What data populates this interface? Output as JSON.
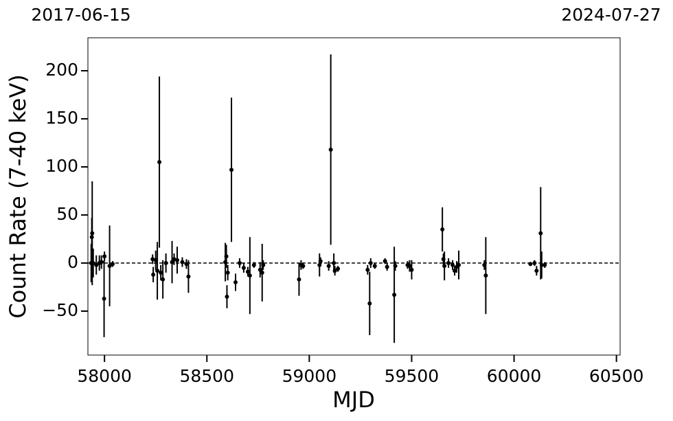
{
  "chart_data": {
    "type": "scatter",
    "annotations": [
      "2017-06-15",
      "2024-07-27"
    ],
    "xlabel": "MJD",
    "ylabel": "Count Rate (7-40 keV)",
    "color": "#000000",
    "hline": 0,
    "xlim": [
      57919,
      60518
    ],
    "ylim": [
      -95.7,
      234.3
    ],
    "xticks": [
      58000,
      58500,
      59000,
      59500,
      60000,
      60500
    ],
    "yticks": [
      {
        "value": -50,
        "label": "−50"
      },
      0,
      50,
      100,
      150,
      200
    ],
    "x": [
      57940,
      57938,
      57935,
      57945,
      57960,
      57975,
      57985,
      57998,
      58000,
      58025,
      58040,
      58235,
      58238,
      58250,
      58258,
      58268,
      58275,
      58285,
      58300,
      58330,
      58340,
      58355,
      58380,
      58400,
      58410,
      58590,
      58595,
      58598,
      58602,
      58620,
      58640,
      58660,
      58680,
      58700,
      58710,
      58730,
      58760,
      58770,
      58775,
      58950,
      58960,
      58970,
      59050,
      59055,
      59095,
      59105,
      59120,
      59125,
      59140,
      59285,
      59295,
      59300,
      59320,
      59370,
      59380,
      59415,
      59420,
      59480,
      59490,
      59500,
      59650,
      59655,
      59660,
      59680,
      59700,
      59710,
      59720,
      59730,
      59855,
      59862,
      60080,
      60100,
      60110,
      60130,
      60135,
      60150
    ],
    "y": [
      31,
      27,
      0,
      0,
      -2,
      0,
      1,
      -37,
      7,
      -3,
      -1,
      4,
      -12,
      3,
      -8,
      105,
      -10,
      -17,
      0,
      1,
      4,
      3,
      1,
      -1,
      -14,
      1,
      7,
      -35,
      -10,
      97,
      -20,
      0,
      -5,
      -9,
      -13,
      -2,
      -7,
      -10,
      -2,
      -17,
      -2,
      -3,
      -2,
      2,
      -3,
      118,
      0,
      -8,
      -6,
      -7,
      -42,
      0,
      -3,
      2,
      -4,
      -33,
      -3,
      -2,
      -3,
      -7,
      35,
      4,
      -3,
      0,
      -2,
      -8,
      -4,
      -2,
      -2,
      -13,
      -1,
      0,
      -8,
      31,
      -2,
      -2
    ],
    "yerr": [
      54,
      20,
      20,
      15,
      10,
      8,
      7,
      40,
      5,
      42,
      3,
      5,
      8,
      10,
      30,
      89,
      8,
      20,
      10,
      22,
      6,
      14,
      5,
      5,
      17,
      20,
      12,
      12,
      8,
      75,
      9,
      5,
      5,
      5,
      40,
      3,
      8,
      30,
      5,
      17,
      5,
      3,
      12,
      4,
      5,
      99,
      10,
      5,
      3,
      5,
      33,
      5,
      3,
      3,
      4,
      50,
      5,
      4,
      6,
      10,
      23,
      6,
      15,
      5,
      5,
      5,
      6,
      15,
      5,
      40,
      2,
      3,
      5,
      48,
      14,
      3
    ]
  }
}
